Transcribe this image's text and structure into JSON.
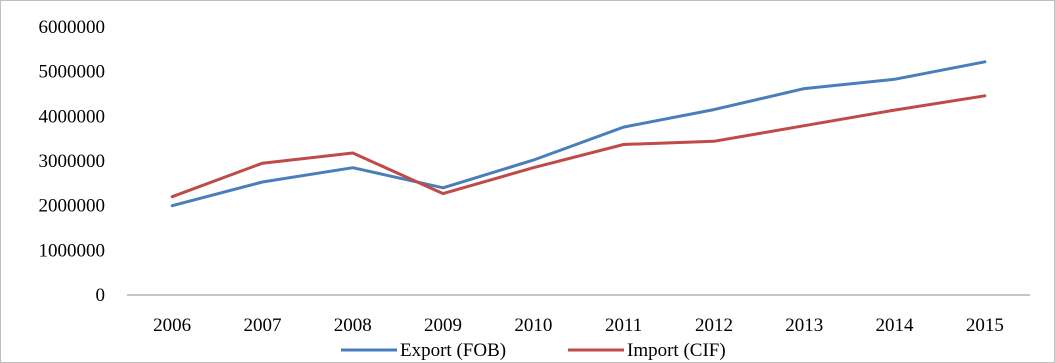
{
  "chart_data": {
    "type": "line",
    "title": "",
    "xlabel": "",
    "ylabel": "",
    "categories": [
      "2006",
      "2007",
      "2008",
      "2009",
      "2010",
      "2011",
      "2012",
      "2013",
      "2014",
      "2015"
    ],
    "ylim": [
      0,
      6000000
    ],
    "yticks": [
      "0",
      "1000000",
      "2000000",
      "3000000",
      "4000000",
      "5000000",
      "6000000"
    ],
    "grid": false,
    "legend_position": "bottom",
    "series": [
      {
        "name": "Export (FOB)",
        "color": "#4a7ebb",
        "values": [
          2000000,
          2530000,
          2850000,
          2400000,
          3020000,
          3760000,
          4150000,
          4620000,
          4830000,
          5220000
        ]
      },
      {
        "name": "Import (CIF)",
        "color": "#be4b48",
        "values": [
          2200000,
          2950000,
          3180000,
          2270000,
          2850000,
          3370000,
          3440000,
          3790000,
          4140000,
          4460000
        ]
      }
    ]
  }
}
